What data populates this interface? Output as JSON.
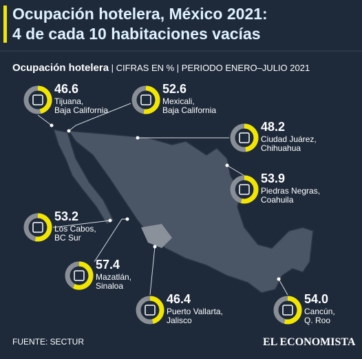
{
  "chart_data": {
    "type": "donut",
    "title": "Ocupación hotelera, México 2021:\n4 de cada 10 habitaciones vacías",
    "subtitle": [
      "Ocupación hotelera",
      "CIFRAS EN %",
      "PERIODO ENERO–JULIO 2021"
    ],
    "categories": [
      "Tijuana,\nBaja California",
      "Mexicali,\nBaja California",
      "Ciudad Juárez,\nChihuahua",
      "Piedras Negras,\nCoahuila",
      "Los Cabos,\nBC Sur",
      "Mazatlán,\nSinaloa",
      "Puerto Vallarta,\nJalisco",
      "Cancún,\nQ. Roo"
    ],
    "values": [
      46.6,
      52.6,
      48.2,
      53.9,
      53.2,
      57.4,
      46.4,
      54.0
    ],
    "value_labels": [
      "46.6",
      "52.6",
      "48.2",
      "53.9",
      "53.2",
      "57.4",
      "46.4",
      "54.0"
    ],
    "ylim": [
      0,
      100
    ],
    "color": "#f2e600",
    "rest_color": "#8a8f96",
    "source": "FUENTE: SECTUR",
    "brand": "EL ECONOMISTA"
  }
}
